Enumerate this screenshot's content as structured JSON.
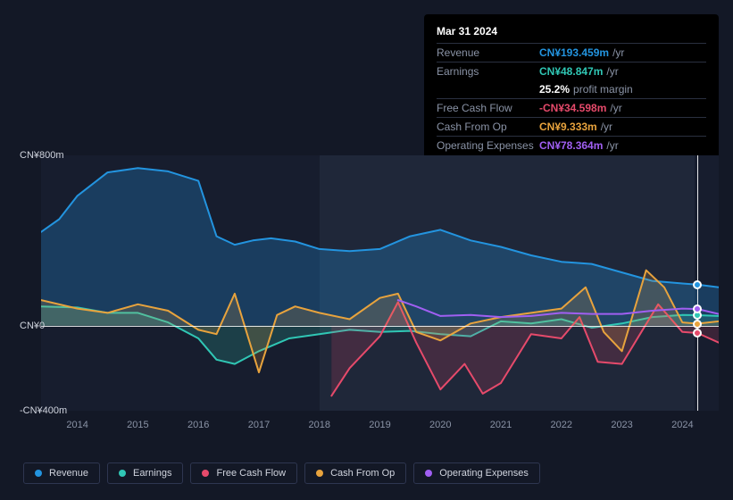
{
  "tooltip": {
    "title": "Mar 31 2024",
    "rows": [
      {
        "label": "Revenue",
        "value": "CN¥193.459m",
        "color": "#2394df",
        "suffix": "/yr"
      },
      {
        "label": "Earnings",
        "value": "CN¥48.847m",
        "color": "#30c7b5",
        "suffix": "/yr"
      },
      {
        "label": "",
        "pct": "25.2%",
        "note": "profit margin"
      },
      {
        "label": "Free Cash Flow",
        "value": "-CN¥34.598m",
        "color": "#e64a6b",
        "suffix": "/yr"
      },
      {
        "label": "Cash From Op",
        "value": "CN¥9.333m",
        "color": "#e8a33d",
        "suffix": "/yr"
      },
      {
        "label": "Operating Expenses",
        "value": "CN¥78.364m",
        "color": "#a05ff2",
        "suffix": "/yr"
      }
    ]
  },
  "chart": {
    "type": "area-line",
    "background": "#171d2e",
    "ylim": [
      -400,
      800
    ],
    "y_ticks": [
      {
        "v": 800,
        "label": "CN¥800m"
      },
      {
        "v": 0,
        "label": "CN¥0"
      },
      {
        "v": -400,
        "label": "-CN¥400m"
      }
    ],
    "x_years": [
      2014,
      2015,
      2016,
      2017,
      2018,
      2019,
      2020,
      2021,
      2022,
      2023,
      2024
    ],
    "x_range": [
      2013.4,
      2024.6
    ],
    "highlight_band": {
      "from": 2018.0,
      "to": 2024.2,
      "color": "#1f2739"
    },
    "cursor_x": 2024.25,
    "series": [
      {
        "name": "Revenue",
        "color": "#2394df",
        "fill": true,
        "fillOpacity": 0.28,
        "points": [
          [
            2013.4,
            440
          ],
          [
            2013.7,
            500
          ],
          [
            2014.0,
            610
          ],
          [
            2014.5,
            720
          ],
          [
            2015.0,
            740
          ],
          [
            2015.5,
            725
          ],
          [
            2016.0,
            680
          ],
          [
            2016.3,
            420
          ],
          [
            2016.6,
            380
          ],
          [
            2016.9,
            400
          ],
          [
            2017.2,
            410
          ],
          [
            2017.6,
            395
          ],
          [
            2018.0,
            360
          ],
          [
            2018.5,
            350
          ],
          [
            2019.0,
            360
          ],
          [
            2019.5,
            420
          ],
          [
            2020.0,
            450
          ],
          [
            2020.5,
            400
          ],
          [
            2021.0,
            370
          ],
          [
            2021.5,
            330
          ],
          [
            2022.0,
            300
          ],
          [
            2022.5,
            290
          ],
          [
            2023.0,
            250
          ],
          [
            2023.5,
            210
          ],
          [
            2024.0,
            198
          ],
          [
            2024.25,
            193
          ],
          [
            2024.6,
            180
          ]
        ]
      },
      {
        "name": "Earnings",
        "color": "#30c7b5",
        "fill": true,
        "fillOpacity": 0.2,
        "points": [
          [
            2013.4,
            90
          ],
          [
            2014.0,
            85
          ],
          [
            2014.5,
            60
          ],
          [
            2015.0,
            60
          ],
          [
            2015.5,
            15
          ],
          [
            2016.0,
            -60
          ],
          [
            2016.3,
            -160
          ],
          [
            2016.6,
            -180
          ],
          [
            2017.0,
            -120
          ],
          [
            2017.5,
            -60
          ],
          [
            2018.0,
            -40
          ],
          [
            2018.5,
            -20
          ],
          [
            2019.0,
            -30
          ],
          [
            2019.5,
            -25
          ],
          [
            2020.0,
            -40
          ],
          [
            2020.5,
            -50
          ],
          [
            2021.0,
            20
          ],
          [
            2021.5,
            10
          ],
          [
            2022.0,
            30
          ],
          [
            2022.5,
            -10
          ],
          [
            2023.0,
            10
          ],
          [
            2023.5,
            40
          ],
          [
            2024.0,
            50
          ],
          [
            2024.25,
            49
          ],
          [
            2024.6,
            45
          ]
        ]
      },
      {
        "name": "Free Cash Flow",
        "color": "#e64a6b",
        "fill": true,
        "fillOpacity": 0.18,
        "points": [
          [
            2018.2,
            -330
          ],
          [
            2018.5,
            -200
          ],
          [
            2019.0,
            -50
          ],
          [
            2019.3,
            110
          ],
          [
            2019.6,
            -80
          ],
          [
            2020.0,
            -300
          ],
          [
            2020.4,
            -180
          ],
          [
            2020.7,
            -320
          ],
          [
            2021.0,
            -270
          ],
          [
            2021.5,
            -40
          ],
          [
            2022.0,
            -60
          ],
          [
            2022.3,
            40
          ],
          [
            2022.6,
            -170
          ],
          [
            2023.0,
            -180
          ],
          [
            2023.3,
            -40
          ],
          [
            2023.6,
            100
          ],
          [
            2024.0,
            -30
          ],
          [
            2024.25,
            -35
          ],
          [
            2024.6,
            -80
          ]
        ]
      },
      {
        "name": "Cash From Op",
        "color": "#e8a33d",
        "fill": true,
        "fillOpacity": 0.18,
        "points": [
          [
            2013.4,
            120
          ],
          [
            2014.0,
            80
          ],
          [
            2014.5,
            60
          ],
          [
            2015.0,
            100
          ],
          [
            2015.5,
            70
          ],
          [
            2016.0,
            -20
          ],
          [
            2016.3,
            -40
          ],
          [
            2016.6,
            150
          ],
          [
            2017.0,
            -220
          ],
          [
            2017.3,
            50
          ],
          [
            2017.6,
            90
          ],
          [
            2018.0,
            60
          ],
          [
            2018.5,
            30
          ],
          [
            2019.0,
            130
          ],
          [
            2019.3,
            150
          ],
          [
            2019.6,
            -30
          ],
          [
            2020.0,
            -70
          ],
          [
            2020.5,
            10
          ],
          [
            2021.0,
            40
          ],
          [
            2021.5,
            60
          ],
          [
            2022.0,
            80
          ],
          [
            2022.4,
            180
          ],
          [
            2022.7,
            -30
          ],
          [
            2023.0,
            -120
          ],
          [
            2023.4,
            260
          ],
          [
            2023.7,
            180
          ],
          [
            2024.0,
            15
          ],
          [
            2024.25,
            9
          ],
          [
            2024.6,
            20
          ]
        ]
      },
      {
        "name": "Operating Expenses",
        "color": "#a05ff2",
        "fill": false,
        "points": [
          [
            2019.3,
            120
          ],
          [
            2019.6,
            90
          ],
          [
            2020.0,
            45
          ],
          [
            2020.5,
            50
          ],
          [
            2021.0,
            40
          ],
          [
            2021.5,
            45
          ],
          [
            2022.0,
            60
          ],
          [
            2022.5,
            55
          ],
          [
            2023.0,
            55
          ],
          [
            2023.5,
            70
          ],
          [
            2024.0,
            80
          ],
          [
            2024.25,
            78
          ],
          [
            2024.6,
            55
          ]
        ]
      }
    ]
  },
  "legend": [
    {
      "label": "Revenue",
      "color": "#2394df"
    },
    {
      "label": "Earnings",
      "color": "#30c7b5"
    },
    {
      "label": "Free Cash Flow",
      "color": "#e64a6b"
    },
    {
      "label": "Cash From Op",
      "color": "#e8a33d"
    },
    {
      "label": "Operating Expenses",
      "color": "#a05ff2"
    }
  ]
}
